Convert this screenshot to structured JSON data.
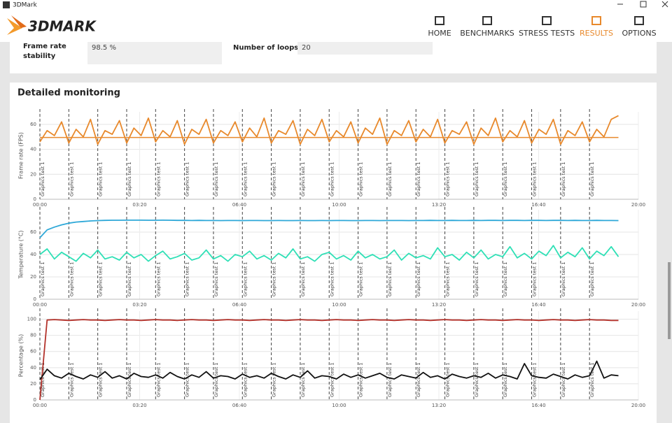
{
  "window": {
    "title": "3DMark"
  },
  "header": {
    "logo": "3DMARK",
    "nav": [
      "HOME",
      "BENCHMARKS",
      "STRESS TESTS",
      "RESULTS",
      "OPTIONS"
    ],
    "active": 3
  },
  "summary": [
    {
      "label": "Frame rate stability",
      "value": "98.5 %"
    },
    {
      "label": "Number of loops",
      "value": "20"
    }
  ],
  "section": {
    "title": "Detailed monitoring"
  },
  "chart_data": [
    {
      "type": "line",
      "ylabel": "Frame rate (FPS)",
      "xlim": [
        0,
        1200
      ],
      "ylim": [
        0,
        70
      ],
      "yticks": [
        0,
        20,
        40,
        60
      ],
      "xticks": [
        {
          "value": 0,
          "label": "00:00"
        },
        {
          "value": 200,
          "label": "03:20"
        },
        {
          "value": 400,
          "label": "06:40"
        },
        {
          "value": 600,
          "label": "10:00"
        },
        {
          "value": 800,
          "label": "13:20"
        },
        {
          "value": 1000,
          "label": "16:40"
        },
        {
          "value": 1200,
          "label": "20:00"
        }
      ],
      "marker_x": [
        0,
        58,
        116,
        174,
        232,
        290,
        348,
        406,
        464,
        522,
        580,
        638,
        696,
        754,
        812,
        870,
        928,
        986,
        1044,
        1102
      ],
      "marker_label": "Graphics test 1",
      "x": [
        0,
        14.5,
        29,
        43.5,
        58,
        72.5,
        87,
        101.5,
        116,
        130.5,
        145,
        159.5,
        174,
        188.5,
        203,
        217.5,
        232,
        246.5,
        261,
        275.5,
        290,
        304.5,
        319,
        333.5,
        348,
        362.5,
        377,
        391.5,
        406,
        420.5,
        435,
        449.5,
        464,
        478.5,
        493,
        507.5,
        522,
        536.5,
        551,
        565.5,
        580,
        594.5,
        609,
        623.5,
        638,
        652.5,
        667,
        681.5,
        696,
        710.5,
        725,
        739.5,
        754,
        768.5,
        783,
        797.5,
        812,
        826.5,
        841,
        855.5,
        870,
        884.5,
        899,
        913.5,
        928,
        942.5,
        957,
        971.5,
        986,
        1000.5,
        1015,
        1029.5,
        1044,
        1058.5,
        1073,
        1087.5,
        1102,
        1116.5,
        1131,
        1145.5,
        1160
      ],
      "series": [
        {
          "color": "#e8892c",
          "values": [
            46,
            55,
            51,
            62,
            45,
            56,
            50,
            64,
            44,
            55,
            52,
            63,
            45,
            57,
            51,
            65,
            46,
            55,
            50,
            63,
            44,
            56,
            52,
            64,
            45,
            55,
            51,
            62,
            46,
            57,
            50,
            65,
            45,
            55,
            52,
            63,
            44,
            56,
            51,
            64,
            46,
            55,
            50,
            62,
            45,
            57,
            52,
            65,
            44,
            55,
            51,
            63,
            46,
            56,
            50,
            64,
            45,
            55,
            52,
            62,
            44,
            57,
            51,
            65,
            46,
            55,
            50,
            63,
            45,
            56,
            52,
            64,
            44,
            55,
            51,
            62,
            46,
            56,
            50,
            64,
            67
          ]
        }
      ],
      "hline": {
        "value": 49.5,
        "color": "#e8892c"
      }
    },
    {
      "type": "line",
      "ylabel": "Temperature (°C)",
      "xlim": [
        0,
        1200
      ],
      "ylim": [
        0,
        80
      ],
      "yticks": [
        0,
        20,
        40,
        60
      ],
      "xticks": [
        {
          "value": 0,
          "label": "00:00"
        },
        {
          "value": 200,
          "label": "03:20"
        },
        {
          "value": 400,
          "label": "06:40"
        },
        {
          "value": 600,
          "label": "10:00"
        },
        {
          "value": 800,
          "label": "13:20"
        },
        {
          "value": 1000,
          "label": "16:40"
        },
        {
          "value": 1200,
          "label": "20:00"
        }
      ],
      "marker_x": [
        0,
        58,
        116,
        174,
        232,
        290,
        348,
        406,
        464,
        522,
        580,
        638,
        696,
        754,
        812,
        870,
        928,
        986,
        1044,
        1102
      ],
      "marker_label": "Graphics test 1",
      "x": [
        0,
        14.5,
        29,
        43.5,
        58,
        72.5,
        87,
        101.5,
        116,
        130.5,
        145,
        159.5,
        174,
        188.5,
        203,
        217.5,
        232,
        246.5,
        261,
        275.5,
        290,
        304.5,
        319,
        333.5,
        348,
        362.5,
        377,
        391.5,
        406,
        420.5,
        435,
        449.5,
        464,
        478.5,
        493,
        507.5,
        522,
        536.5,
        551,
        565.5,
        580,
        594.5,
        609,
        623.5,
        638,
        652.5,
        667,
        681.5,
        696,
        710.5,
        725,
        739.5,
        754,
        768.5,
        783,
        797.5,
        812,
        826.5,
        841,
        855.5,
        870,
        884.5,
        899,
        913.5,
        928,
        942.5,
        957,
        971.5,
        986,
        1000.5,
        1015,
        1029.5,
        1044,
        1058.5,
        1073,
        1087.5,
        1102,
        1116.5,
        1131,
        1145.5,
        1160
      ],
      "series": [
        {
          "color": "#2ea8d8",
          "values": [
            55,
            62,
            64.5,
            66.5,
            68,
            69,
            69.5,
            70,
            70.3,
            70.5,
            70.6,
            70.6,
            70.7,
            70.7,
            70.7,
            70.6,
            70.6,
            70.7,
            70.6,
            70.5,
            70.5,
            70.4,
            70.5,
            70.4,
            70.4,
            70.3,
            70.4,
            70.4,
            70.3,
            70.4,
            70.4,
            70.3,
            70.3,
            70.4,
            70.3,
            70.3,
            70.4,
            70.3,
            70.3,
            70.4,
            70.3,
            70.4,
            70.4,
            70.3,
            70.3,
            70.4,
            70.4,
            70.3,
            70.4,
            70.4,
            70.4,
            70.3,
            70.4,
            70.4,
            70.5,
            70.4,
            70.4,
            70.5,
            70.4,
            70.4,
            70.5,
            70.4,
            70.5,
            70.5,
            70.4,
            70.5,
            70.5,
            70.4,
            70.5,
            70.5,
            70.4,
            70.5,
            70.5,
            70.4,
            70.5,
            70.4,
            70.4,
            70.5,
            70.4,
            70.4,
            70.3
          ]
        },
        {
          "color": "#2fe0b6",
          "values": [
            40,
            45,
            36,
            42,
            38,
            34,
            41,
            37,
            44,
            36,
            38,
            35,
            42,
            37,
            40,
            34,
            39,
            43,
            36,
            38,
            41,
            35,
            37,
            44,
            36,
            39,
            34,
            40,
            38,
            43,
            36,
            39,
            35,
            41,
            37,
            45,
            36,
            38,
            34,
            40,
            42,
            36,
            39,
            35,
            43,
            37,
            40,
            36,
            38,
            44,
            35,
            41,
            37,
            39,
            36,
            46,
            38,
            40,
            35,
            42,
            37,
            44,
            36,
            40,
            38,
            47,
            37,
            41,
            36,
            43,
            39,
            48,
            37,
            42,
            38,
            46,
            36,
            43,
            39,
            47,
            38
          ]
        }
      ]
    },
    {
      "type": "line",
      "ylabel": "Percentage (%)",
      "xlim": [
        0,
        1200
      ],
      "ylim": [
        0,
        110
      ],
      "yticks": [
        0,
        20,
        40,
        60,
        80,
        100
      ],
      "xticks": [
        {
          "value": 0,
          "label": "00:00"
        },
        {
          "value": 200,
          "label": "03:20"
        },
        {
          "value": 400,
          "label": "06:40"
        },
        {
          "value": 600,
          "label": "10:00"
        },
        {
          "value": 800,
          "label": "13:20"
        },
        {
          "value": 1000,
          "label": "16:40"
        },
        {
          "value": 1200,
          "label": "20:00"
        }
      ],
      "marker_x": [
        0,
        58,
        116,
        174,
        232,
        290,
        348,
        406,
        464,
        522,
        580,
        638,
        696,
        754,
        812,
        870,
        928,
        986,
        1044,
        1102
      ],
      "marker_label": "Graphics test 1",
      "x": [
        0,
        14.5,
        29,
        43.5,
        58,
        72.5,
        87,
        101.5,
        116,
        130.5,
        145,
        159.5,
        174,
        188.5,
        203,
        217.5,
        232,
        246.5,
        261,
        275.5,
        290,
        304.5,
        319,
        333.5,
        348,
        362.5,
        377,
        391.5,
        406,
        420.5,
        435,
        449.5,
        464,
        478.5,
        493,
        507.5,
        522,
        536.5,
        551,
        565.5,
        580,
        594.5,
        609,
        623.5,
        638,
        652.5,
        667,
        681.5,
        696,
        710.5,
        725,
        739.5,
        754,
        768.5,
        783,
        797.5,
        812,
        826.5,
        841,
        855.5,
        870,
        884.5,
        899,
        913.5,
        928,
        942.5,
        957,
        971.5,
        986,
        1000.5,
        1015,
        1029.5,
        1044,
        1058.5,
        1073,
        1087.5,
        1102,
        1116.5,
        1131,
        1145.5,
        1160
      ],
      "series": [
        {
          "color": "#b3322b",
          "values": [
            0,
            99,
            99.5,
            99,
            98.5,
            99,
            99.5,
            99,
            99,
            98.5,
            99,
            99.5,
            99,
            99,
            98.5,
            99,
            99.5,
            99,
            99,
            98.5,
            99,
            99.5,
            99,
            99,
            98.5,
            99,
            99.5,
            99,
            99,
            98.5,
            99,
            99.5,
            99,
            99,
            98.5,
            99,
            99.5,
            99,
            99,
            98.5,
            99,
            99.5,
            99,
            99,
            98.5,
            99,
            99.5,
            99,
            99,
            98.5,
            99,
            99.5,
            99,
            99,
            98.5,
            99,
            99.5,
            99,
            99,
            98.5,
            99,
            99.5,
            99,
            99,
            98.5,
            99,
            99.5,
            99,
            99,
            98.5,
            99,
            99.5,
            99,
            99,
            98.5,
            99,
            99.5,
            99,
            99,
            98.5,
            98.5
          ]
        },
        {
          "color": "#111111",
          "values": [
            25,
            38,
            30,
            27,
            33,
            29,
            26,
            31,
            28,
            35,
            27,
            30,
            26,
            33,
            29,
            28,
            31,
            27,
            34,
            29,
            26,
            31,
            28,
            35,
            27,
            30,
            29,
            26,
            32,
            28,
            30,
            27,
            33,
            29,
            26,
            31,
            28,
            36,
            27,
            30,
            29,
            26,
            32,
            28,
            31,
            27,
            30,
            33,
            28,
            26,
            31,
            29,
            27,
            34,
            28,
            30,
            26,
            32,
            29,
            27,
            30,
            28,
            33,
            27,
            31,
            29,
            26,
            45,
            30,
            28,
            27,
            32,
            29,
            26,
            31,
            28,
            30,
            48,
            27,
            31,
            30
          ]
        }
      ]
    }
  ]
}
